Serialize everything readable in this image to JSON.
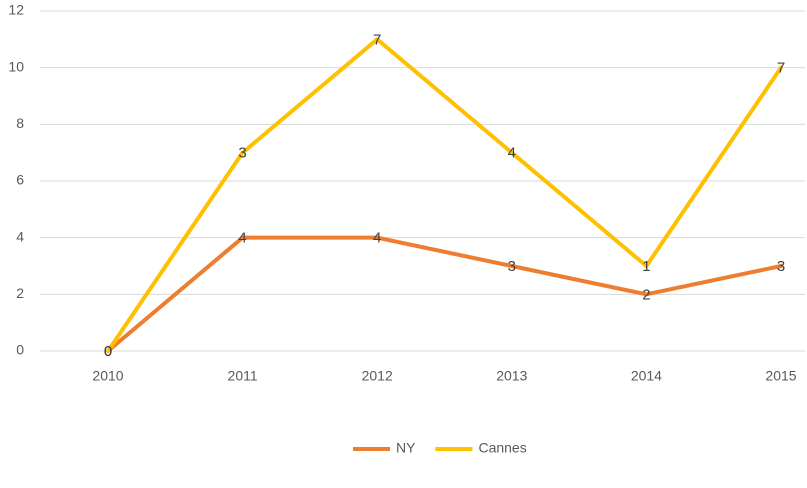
{
  "chart_data": {
    "type": "line",
    "stacked": true,
    "categories": [
      "2010",
      "2011",
      "2012",
      "2013",
      "2014",
      "2015"
    ],
    "series": [
      {
        "name": "NY",
        "color": "#ed7d31",
        "values": [
          0,
          4,
          4,
          3,
          2,
          3
        ]
      },
      {
        "name": "Cannes",
        "color": "#ffc000",
        "values": [
          0,
          3,
          7,
          4,
          1,
          7
        ]
      }
    ],
    "ylim": [
      0,
      12
    ],
    "yticks": [
      0,
      2,
      4,
      6,
      8,
      10,
      12
    ],
    "grid": true,
    "data_labels": true,
    "legend": "bottom"
  }
}
